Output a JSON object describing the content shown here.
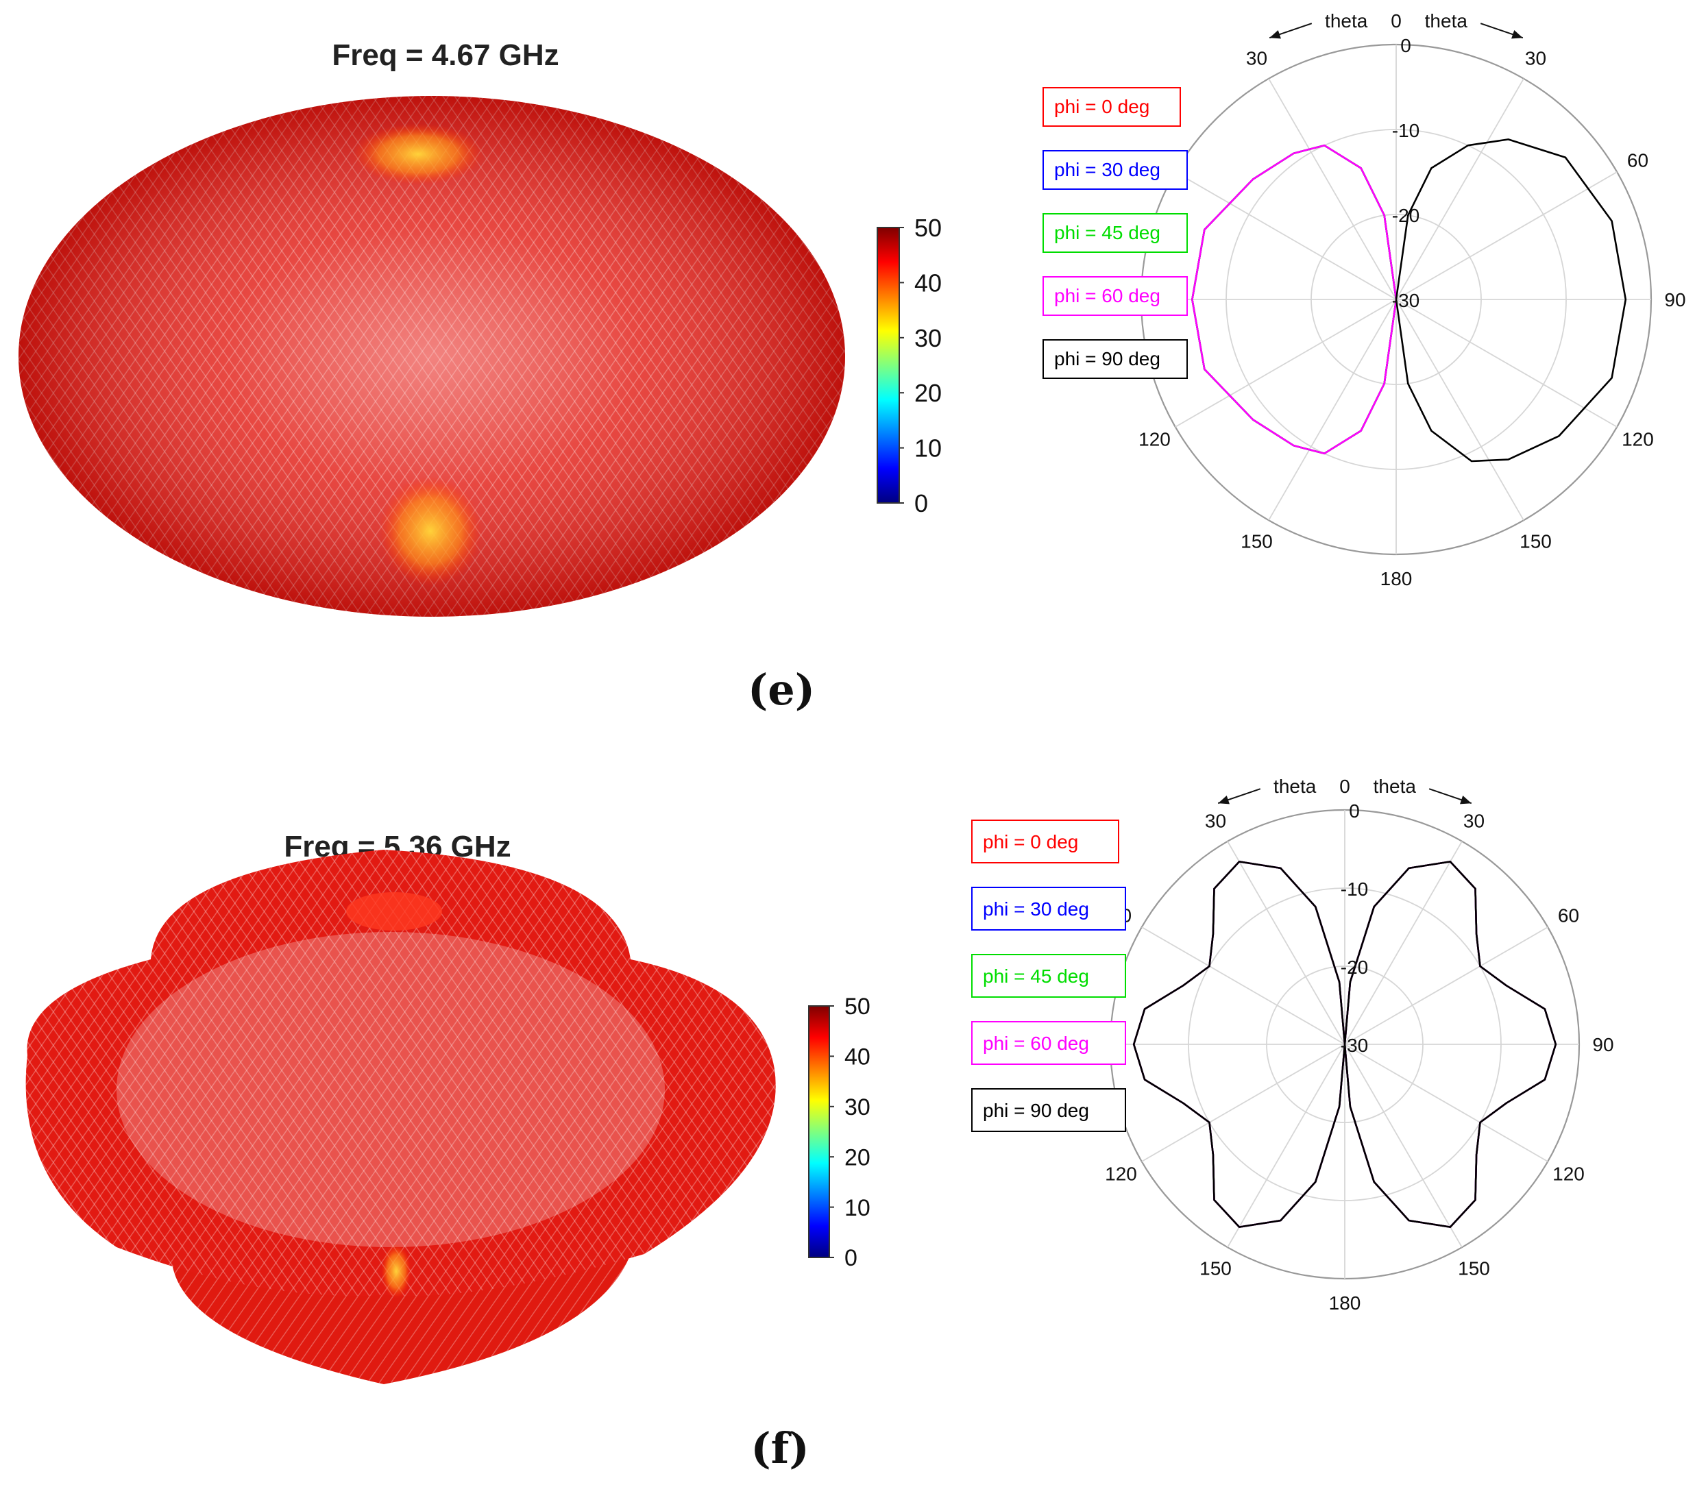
{
  "chart_data": [
    {
      "type": "3d-radiation-pattern",
      "panel": "(e)",
      "title": "Freq = 4.67 GHz",
      "surface_color": "#e21a12",
      "colorbar": {
        "ticks": [
          "50",
          "40",
          "30",
          "20",
          "10",
          "0"
        ],
        "range": [
          0,
          50
        ]
      }
    },
    {
      "type": "polar",
      "panel": "(e)",
      "theta_labels": [
        "0",
        "30",
        "60",
        "90",
        "120",
        "150",
        "180",
        "150",
        "120",
        "90",
        "60",
        "30"
      ],
      "theta_annotations": [
        "theta",
        "theta"
      ],
      "radial_ticks": [
        "0",
        "-10",
        "-20",
        "-30"
      ],
      "rlim": [
        -30,
        0
      ],
      "legend": [
        {
          "label": "phi = 0  deg",
          "color": "#ff0000"
        },
        {
          "label": "phi = 30 deg",
          "color": "#0000ff"
        },
        {
          "label": "phi = 45 deg",
          "color": "#00dd00"
        },
        {
          "label": "phi = 60 deg",
          "color": "#ff00ff"
        },
        {
          "label": "phi = 90 deg",
          "color": "#000000"
        }
      ],
      "series": [
        {
          "name": "phi = 0  deg",
          "color": "#ff0000",
          "side": "left",
          "theta_deg": [
            0,
            8,
            15,
            25,
            35,
            50,
            70,
            90,
            110,
            130,
            145,
            155,
            165,
            172,
            180
          ],
          "gain_db": [
            -30,
            -20,
            -14,
            -10,
            -9,
            -8,
            -6,
            -6,
            -6,
            -8,
            -9,
            -10,
            -14,
            -20,
            -30
          ]
        },
        {
          "name": "phi = 30 deg",
          "color": "#0000ff",
          "side": "left",
          "theta_deg": [
            0,
            8,
            15,
            25,
            35,
            50,
            70,
            90,
            110,
            130,
            145,
            155,
            165,
            172,
            180
          ],
          "gain_db": [
            -30,
            -20,
            -14,
            -10,
            -9,
            -8,
            -6,
            -6,
            -6,
            -8,
            -9,
            -10,
            -14,
            -20,
            -30
          ]
        },
        {
          "name": "phi = 45 deg",
          "color": "#00dd00",
          "side": "left",
          "theta_deg": [
            0,
            8,
            15,
            25,
            35,
            50,
            70,
            90,
            110,
            130,
            145,
            155,
            165,
            172,
            180
          ],
          "gain_db": [
            -30,
            -20,
            -14,
            -10,
            -9,
            -8,
            -6,
            -6,
            -6,
            -8,
            -9,
            -10,
            -14,
            -20,
            -30
          ]
        },
        {
          "name": "phi = 60 deg",
          "color": "#ff00ff",
          "side": "left",
          "theta_deg": [
            0,
            8,
            15,
            25,
            35,
            50,
            70,
            90,
            110,
            130,
            145,
            155,
            165,
            172,
            180
          ],
          "gain_db": [
            -30,
            -20,
            -14,
            -10,
            -9,
            -8,
            -6,
            -6,
            -6,
            -8,
            -9,
            -10,
            -14,
            -20,
            -30
          ]
        },
        {
          "name": "phi = 90 deg",
          "color": "#000000",
          "side": "right",
          "theta_deg": [
            0,
            8,
            15,
            25,
            35,
            50,
            70,
            90,
            110,
            130,
            145,
            155,
            165,
            172,
            180
          ],
          "gain_db": [
            -30,
            -20,
            -14,
            -10,
            -7,
            -4,
            -3,
            -3,
            -3,
            -5,
            -7,
            -9,
            -14,
            -20,
            -30
          ]
        }
      ]
    },
    {
      "type": "3d-radiation-pattern",
      "panel": "(f)",
      "title": "Freq = 5.36 GHz",
      "surface_color": "#e21a12",
      "colorbar": {
        "ticks": [
          "50",
          "40",
          "30",
          "20",
          "10",
          "0"
        ],
        "range": [
          0,
          50
        ]
      }
    },
    {
      "type": "polar",
      "panel": "(f)",
      "theta_labels": [
        "0",
        "30",
        "60",
        "90",
        "120",
        "150",
        "180",
        "150",
        "120",
        "90",
        "60",
        "30"
      ],
      "theta_annotations": [
        "theta",
        "theta"
      ],
      "radial_ticks": [
        "0",
        "-10",
        "-20",
        "-30"
      ],
      "rlim": [
        -30,
        0
      ],
      "legend": [
        {
          "label": "phi = 0  deg",
          "color": "#ff0000"
        },
        {
          "label": "phi = 30 deg",
          "color": "#0000ff"
        },
        {
          "label": "phi = 45 deg",
          "color": "#00dd00"
        },
        {
          "label": "phi = 60 deg",
          "color": "#ff00ff"
        },
        {
          "label": "phi = 90 deg",
          "color": "#000000"
        }
      ],
      "series": [
        {
          "name": "phi = 0  deg",
          "color": "#ff0000",
          "side": "both",
          "theta_deg": [
            0,
            5,
            12,
            20,
            30,
            40,
            50,
            60,
            70,
            80,
            90,
            100,
            110,
            120,
            130,
            140,
            150,
            160,
            168,
            175,
            180
          ],
          "gain_db": [
            -30,
            -22,
            -12,
            -6,
            -3,
            -4,
            -8,
            -10,
            -8,
            -4,
            -3,
            -4,
            -8,
            -10,
            -8,
            -4,
            -3,
            -6,
            -12,
            -22,
            -30
          ]
        },
        {
          "name": "phi = 30 deg",
          "color": "#0000ff",
          "side": "both",
          "theta_deg": [
            0,
            5,
            12,
            20,
            30,
            40,
            50,
            60,
            70,
            80,
            90,
            100,
            110,
            120,
            130,
            140,
            150,
            160,
            168,
            175,
            180
          ],
          "gain_db": [
            -30,
            -22,
            -12,
            -6,
            -3,
            -4,
            -8,
            -10,
            -8,
            -4,
            -3,
            -4,
            -8,
            -10,
            -8,
            -4,
            -3,
            -6,
            -12,
            -22,
            -30
          ]
        },
        {
          "name": "phi = 45 deg",
          "color": "#00dd00",
          "side": "both",
          "theta_deg": [
            0,
            5,
            12,
            20,
            30,
            40,
            50,
            60,
            70,
            80,
            90,
            100,
            110,
            120,
            130,
            140,
            150,
            160,
            168,
            175,
            180
          ],
          "gain_db": [
            -30,
            -22,
            -12,
            -6,
            -3,
            -4,
            -8,
            -10,
            -8,
            -4,
            -3,
            -4,
            -8,
            -10,
            -8,
            -4,
            -3,
            -6,
            -12,
            -22,
            -30
          ]
        },
        {
          "name": "phi = 60 deg",
          "color": "#ff00ff",
          "side": "both",
          "theta_deg": [
            0,
            5,
            12,
            20,
            30,
            40,
            50,
            60,
            70,
            80,
            90,
            100,
            110,
            120,
            130,
            140,
            150,
            160,
            168,
            175,
            180
          ],
          "gain_db": [
            -30,
            -22,
            -12,
            -6,
            -3,
            -4,
            -8,
            -10,
            -8,
            -4,
            -3,
            -4,
            -8,
            -10,
            -8,
            -4,
            -3,
            -6,
            -12,
            -22,
            -30
          ]
        },
        {
          "name": "phi = 90 deg",
          "color": "#000000",
          "side": "both",
          "theta_deg": [
            0,
            5,
            12,
            20,
            30,
            40,
            50,
            60,
            70,
            80,
            90,
            100,
            110,
            120,
            130,
            140,
            150,
            160,
            168,
            175,
            180
          ],
          "gain_db": [
            -30,
            -22,
            -12,
            -6,
            -3,
            -4,
            -8,
            -10,
            -8,
            -4,
            -3,
            -4,
            -8,
            -10,
            -8,
            -4,
            -3,
            -6,
            -12,
            -22,
            -30
          ]
        }
      ]
    }
  ],
  "panel_labels": [
    "(e)",
    "(f)"
  ]
}
